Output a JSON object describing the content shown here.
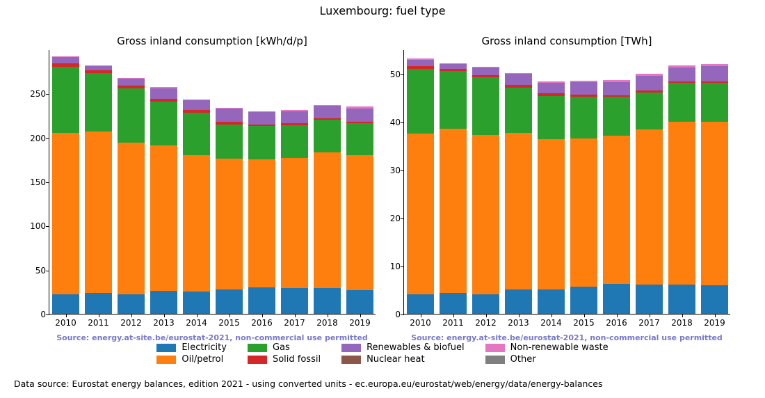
{
  "suptitle": "Luxembourg: fuel type",
  "background_color": "#ffffff",
  "categories": [
    "2010",
    "2011",
    "2012",
    "2013",
    "2014",
    "2015",
    "2016",
    "2017",
    "2018",
    "2019"
  ],
  "series": [
    {
      "name": "Electricity",
      "color": "#1f77b4"
    },
    {
      "name": "Oil/petrol",
      "color": "#ff7f0e"
    },
    {
      "name": "Gas",
      "color": "#2ca02c"
    },
    {
      "name": "Solid fossil",
      "color": "#d62728"
    },
    {
      "name": "Renewables & biofuel",
      "color": "#9467bd"
    },
    {
      "name": "Nuclear heat",
      "color": "#8c564b"
    },
    {
      "name": "Non-renewable waste",
      "color": "#e377c2"
    },
    {
      "name": "Other",
      "color": "#7f7f7f"
    }
  ],
  "legend_labels": {
    "electricity": "Electricity",
    "oil": "Oil/petrol",
    "gas": "Gas",
    "solid": "Solid fossil",
    "renew": "Renewables & biofuel",
    "nuclear": "Nuclear heat",
    "nonrenew": "Non-renewable waste",
    "other": "Other"
  },
  "left": {
    "title": "Gross inland consumption [kWh/d/p]",
    "ylim": [
      0,
      300
    ],
    "yticks": [
      0,
      50,
      100,
      150,
      200,
      250
    ],
    "source": "Source: energy.at-site.be/eurostat-2021, non-commercial use permitted",
    "bar_width": 0.82,
    "data": [
      [
        22,
        183,
        75,
        4,
        7,
        0,
        1,
        0
      ],
      [
        24,
        183,
        66,
        3,
        5,
        0,
        1,
        0
      ],
      [
        22,
        172,
        62,
        3,
        8,
        0,
        1,
        0
      ],
      [
        26,
        165,
        50,
        3,
        12,
        0,
        1,
        0
      ],
      [
        25,
        155,
        48,
        3,
        11,
        0,
        1,
        0
      ],
      [
        28,
        148,
        39,
        3,
        15,
        0,
        1,
        0
      ],
      [
        30,
        145,
        38,
        2,
        14,
        0,
        1,
        0
      ],
      [
        29,
        148,
        37,
        2,
        14,
        0,
        1,
        0
      ],
      [
        29,
        154,
        37,
        2,
        14,
        0,
        1,
        0
      ],
      [
        27,
        153,
        36,
        2,
        15,
        0,
        2,
        0
      ]
    ]
  },
  "right": {
    "title": "Gross inland consumption [TWh]",
    "ylim": [
      0,
      55
    ],
    "yticks": [
      0,
      10,
      20,
      30,
      40,
      50
    ],
    "source": "Source: energy.at-site.be/eurostat-2021, non-commercial use permitted",
    "bar_width": 0.82,
    "data": [
      [
        4.0,
        33.5,
        13.5,
        0.6,
        1.3,
        0,
        0.2,
        0
      ],
      [
        4.4,
        34.1,
        12.0,
        0.5,
        0.9,
        0,
        0.2,
        0
      ],
      [
        4.1,
        33.1,
        12.0,
        0.5,
        1.5,
        0,
        0.2,
        0
      ],
      [
        5.0,
        32.6,
        9.4,
        0.6,
        2.3,
        0,
        0.2,
        0
      ],
      [
        5.0,
        31.3,
        9.0,
        0.6,
        2.2,
        0,
        0.2,
        0
      ],
      [
        5.7,
        30.8,
        8.6,
        0.5,
        2.6,
        0,
        0.3,
        0
      ],
      [
        6.2,
        30.8,
        8.1,
        0.4,
        2.7,
        0,
        0.4,
        0
      ],
      [
        6.1,
        32.3,
        7.7,
        0.4,
        3.0,
        0,
        0.4,
        0
      ],
      [
        6.1,
        33.9,
        8.0,
        0.3,
        3.0,
        0,
        0.4,
        0
      ],
      [
        5.9,
        34.1,
        8.0,
        0.3,
        3.3,
        0,
        0.4,
        0
      ]
    ]
  },
  "footer": "Data source: Eurostat energy balances, edition 2021 - using converted units - ec.europa.eu/eurostat/web/energy/data/energy-balances"
}
